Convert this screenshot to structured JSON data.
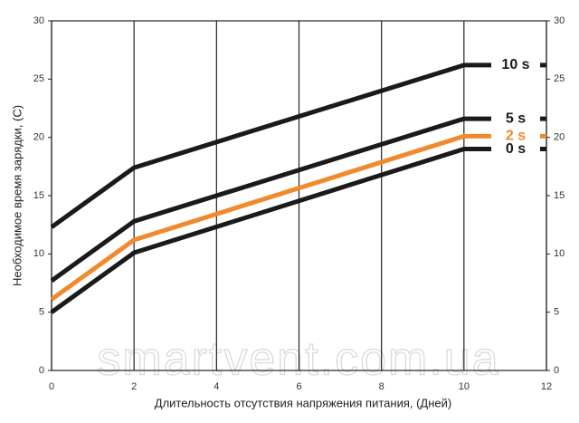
{
  "chart_data": {
    "type": "line",
    "y_label": "Необходимое время зарядки, (С)",
    "x_label": "Длительность отсутствия напряжения питания, (Дней)",
    "watermark": "smartvent.com.ua",
    "x": [
      0,
      2,
      10,
      12
    ],
    "series": [
      {
        "name": "10 s",
        "color": "#1a1a1a",
        "values": [
          12.3,
          17.4,
          26.2,
          26.2
        ]
      },
      {
        "name": "5 s",
        "color": "#1a1a1a",
        "values": [
          7.7,
          12.8,
          21.6,
          21.6
        ]
      },
      {
        "name": "2 s",
        "color": "#f08a2c",
        "values": [
          6.1,
          11.2,
          20.1,
          20.1
        ]
      },
      {
        "name": "0 s",
        "color": "#1a1a1a",
        "values": [
          5.0,
          10.1,
          19.0,
          19.0
        ]
      }
    ],
    "xlim": [
      0,
      12
    ],
    "xticks": [
      0,
      2,
      4,
      6,
      8,
      10,
      12
    ],
    "ylim": [
      0,
      30
    ],
    "yticks": [
      0,
      5,
      10,
      15,
      20,
      25,
      30
    ],
    "grid": "x"
  }
}
